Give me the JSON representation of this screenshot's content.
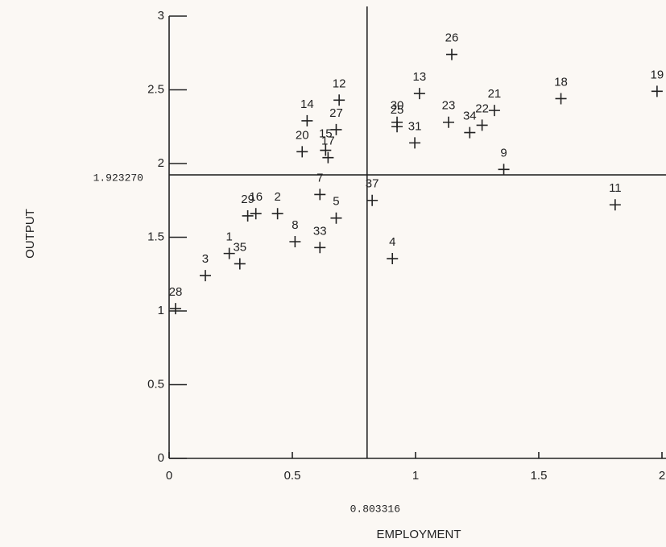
{
  "chart_data": {
    "type": "scatter",
    "xlabel": "EMPLOYMENT",
    "ylabel": "OUTPUT",
    "xlim": [
      0,
      2
    ],
    "ylim": [
      0,
      3
    ],
    "xticks": [
      0,
      0.5,
      1,
      1.5,
      2
    ],
    "yticks": [
      0,
      0.5,
      1,
      1.5,
      2,
      2.5,
      3
    ],
    "xref": 0.803316,
    "yref": {
      "value": 1.92327,
      "label": "1.923270"
    },
    "color": "#222222",
    "point_labels": [
      "28",
      "3",
      "1",
      "35",
      "29",
      "16",
      "2",
      "8",
      "33",
      "7",
      "5",
      "37",
      "4",
      "20",
      "14",
      "12",
      "27",
      "15",
      "17",
      "13",
      "30",
      "25",
      "31",
      "26",
      "23",
      "34",
      "22",
      "21",
      "9",
      "18",
      "19",
      "11"
    ],
    "x": [
      0.026,
      0.147,
      0.244,
      0.287,
      0.319,
      0.352,
      0.44,
      0.511,
      0.612,
      0.612,
      0.678,
      0.824,
      0.906,
      0.54,
      0.56,
      0.69,
      0.678,
      0.635,
      0.645,
      1.016,
      0.925,
      0.925,
      0.997,
      1.147,
      1.134,
      1.22,
      1.27,
      1.32,
      1.358,
      1.59,
      1.98,
      1.81
    ],
    "y": [
      1.016,
      1.24,
      1.39,
      1.32,
      1.645,
      1.66,
      1.66,
      1.47,
      1.43,
      1.79,
      1.63,
      1.75,
      1.355,
      2.08,
      2.29,
      2.43,
      2.23,
      2.09,
      2.04,
      2.475,
      2.28,
      2.25,
      2.14,
      2.74,
      2.28,
      2.21,
      2.26,
      2.36,
      1.96,
      2.44,
      2.49,
      1.72
    ]
  }
}
